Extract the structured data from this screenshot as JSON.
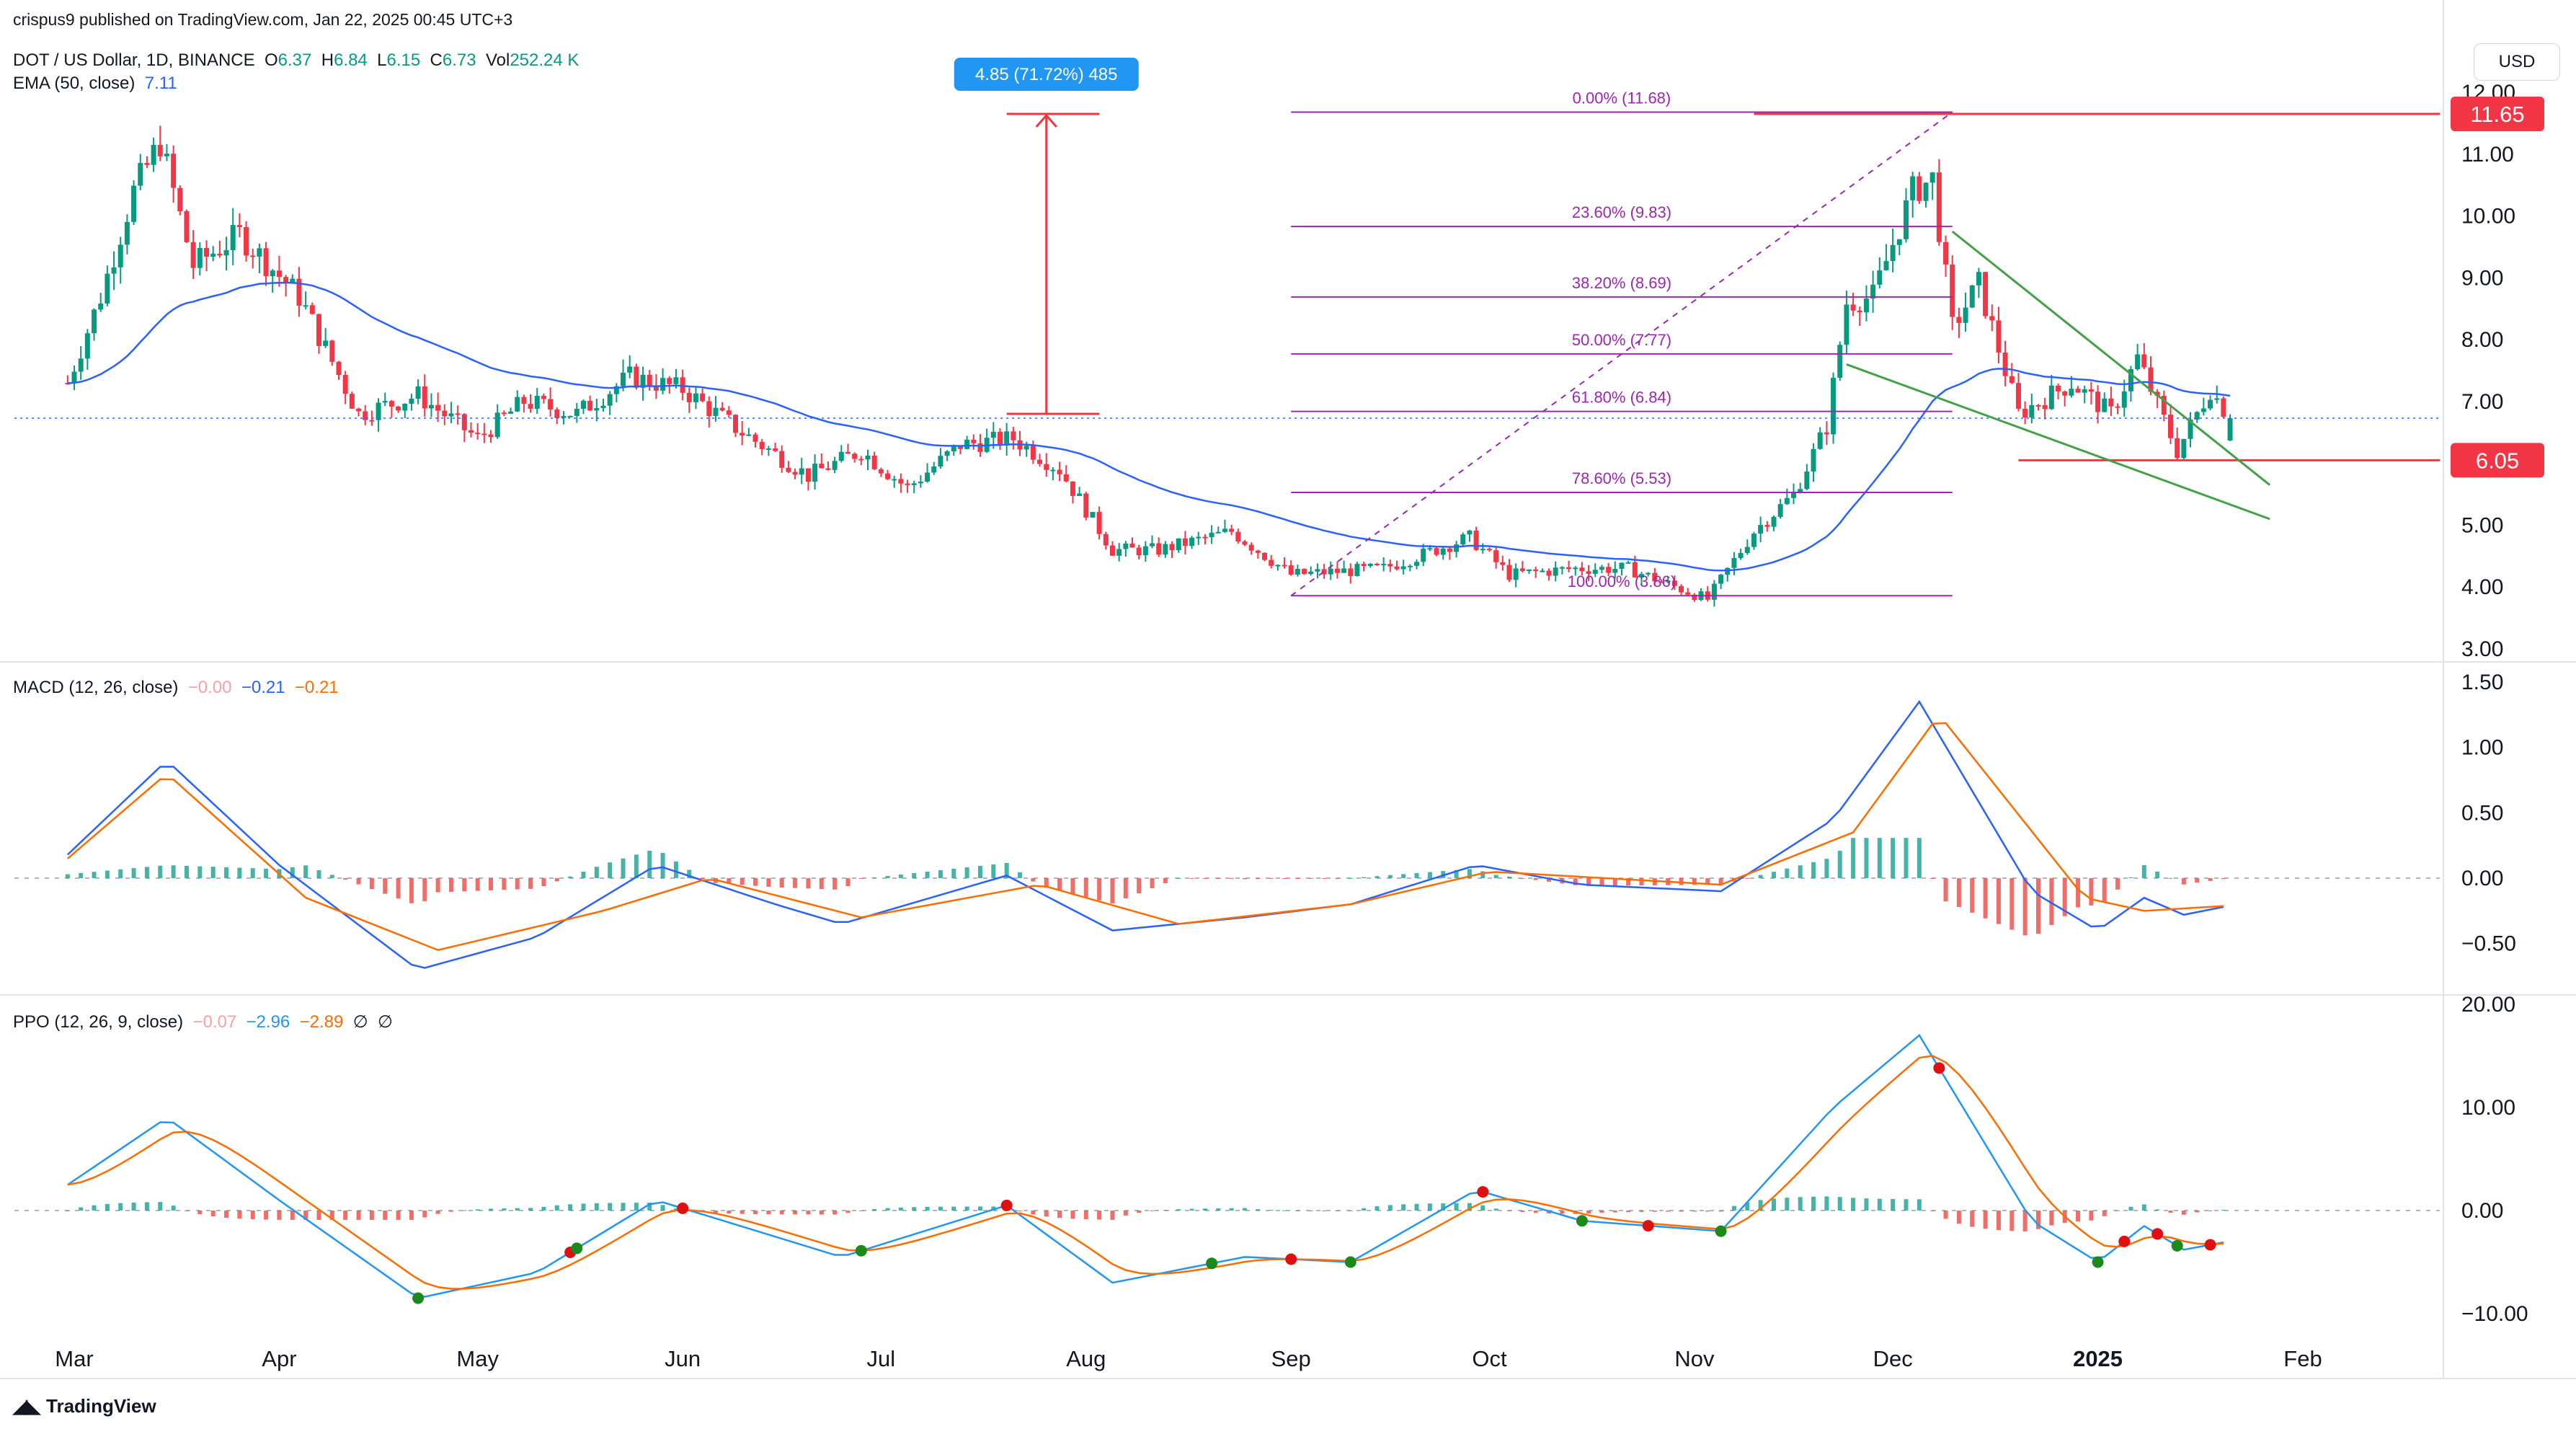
{
  "header": {
    "published": "crispus9 published on TradingView.com, Jan 22, 2025 00:45 UTC+3",
    "symbol": "DOT / US Dollar, 1D, BINANCE",
    "o_label": "O",
    "o": "6.37",
    "h_label": "H",
    "h": "6.84",
    "l_label": "L",
    "l": "6.15",
    "c_label": "C",
    "c": "6.73",
    "vol_label": "Vol",
    "vol": "252.24 K",
    "ema_label": "EMA (50, close)",
    "ema_value": "7.11",
    "currency_button": "USD"
  },
  "macd_legend": {
    "label": "MACD (12, 26, close)",
    "hist": "−0.00",
    "macd": "−0.21",
    "signal": "−0.21"
  },
  "ppo_legend": {
    "label": "PPO (12, 26, 9, close)",
    "hist": "−0.07",
    "ppo": "−2.96",
    "signal": "−2.89",
    "extra1": "∅",
    "extra2": "∅"
  },
  "measure_label": "4.85 (71.72%) 485",
  "footer_brand": "TradingView",
  "colors": {
    "up": "#089981",
    "down": "#f23645",
    "ema": "#2962ff",
    "fib": "#9c27b0",
    "trend": "#43a047",
    "level": "#f23645",
    "macd": "#2962ff",
    "signal": "#ff6d00",
    "ppo": "#2196f3",
    "measure": "#2196f3"
  },
  "chart_data": [
    {
      "type": "candlestick",
      "title": "DOT / US Dollar, 1D, BINANCE",
      "x_ticks": [
        "Mar",
        "Apr",
        "May",
        "Jun",
        "Jul",
        "Aug",
        "Sep",
        "Oct",
        "Nov",
        "Dec",
        "2025",
        "Feb"
      ],
      "y_ticks": [
        "3.00",
        "4.00",
        "5.00",
        "6.00",
        "7.00",
        "8.00",
        "9.00",
        "10.00",
        "11.00",
        "12.00"
      ],
      "ylim": [
        2.8,
        12.3
      ],
      "price_labels": [
        "11.65",
        "6.05"
      ],
      "series": [
        {
          "name": "DOT",
          "approx_close_path": [
            [
              "2024-02-29",
              7.3
            ],
            [
              "2024-03-05",
              8.7
            ],
            [
              "2024-03-10",
              10.4
            ],
            [
              "2024-03-14",
              11.2
            ],
            [
              "2024-03-19",
              9.2
            ],
            [
              "2024-03-26",
              9.7
            ],
            [
              "2024-04-04",
              8.7
            ],
            [
              "2024-04-13",
              6.8
            ],
            [
              "2024-04-22",
              7.1
            ],
            [
              "2024-05-01",
              6.4
            ],
            [
              "2024-05-08",
              7.0
            ],
            [
              "2024-05-16",
              6.8
            ],
            [
              "2024-05-24",
              7.4
            ],
            [
              "2024-06-01",
              7.2
            ],
            [
              "2024-06-10",
              6.5
            ],
            [
              "2024-06-20",
              5.8
            ],
            [
              "2024-06-28",
              6.2
            ],
            [
              "2024-07-05",
              5.6
            ],
            [
              "2024-07-13",
              6.3
            ],
            [
              "2024-07-21",
              6.4
            ],
            [
              "2024-07-28",
              5.9
            ],
            [
              "2024-08-05",
              4.6
            ],
            [
              "2024-08-12",
              4.6
            ],
            [
              "2024-08-23",
              4.9
            ],
            [
              "2024-09-01",
              4.2
            ],
            [
              "2024-09-15",
              4.3
            ],
            [
              "2024-09-28",
              4.8
            ],
            [
              "2024-10-04",
              4.2
            ],
            [
              "2024-10-14",
              4.3
            ],
            [
              "2024-10-22",
              4.3
            ],
            [
              "2024-11-03",
              3.8
            ],
            [
              "2024-11-10",
              4.9
            ],
            [
              "2024-11-16",
              5.5
            ],
            [
              "2024-11-21",
              6.6
            ],
            [
              "2024-11-24",
              8.6
            ],
            [
              "2024-11-28",
              8.7
            ],
            [
              "2024-12-04",
              10.4
            ],
            [
              "2024-12-07",
              10.6
            ],
            [
              "2024-12-10",
              8.2
            ],
            [
              "2024-12-14",
              8.9
            ],
            [
              "2024-12-20",
              6.8
            ],
            [
              "2024-12-28",
              7.3
            ],
            [
              "2025-01-03",
              6.8
            ],
            [
              "2025-01-07",
              7.7
            ],
            [
              "2025-01-13",
              6.2
            ],
            [
              "2025-01-18",
              7.2
            ],
            [
              "2025-01-21",
              6.73
            ]
          ]
        },
        {
          "name": "EMA (50, close)",
          "last": 7.11
        }
      ],
      "fibonacci": [
        {
          "label": "0.00% (11.68)",
          "ratio": 0.0,
          "price": 11.68
        },
        {
          "label": "23.60% (9.83)",
          "ratio": 0.236,
          "price": 9.83
        },
        {
          "label": "38.20% (8.69)",
          "ratio": 0.382,
          "price": 8.69
        },
        {
          "label": "50.00% (7.77)",
          "ratio": 0.5,
          "price": 7.77
        },
        {
          "label": "61.80% (6.84)",
          "ratio": 0.618,
          "price": 6.84
        },
        {
          "label": "78.60% (5.53)",
          "ratio": 0.786,
          "price": 5.53
        },
        {
          "label": "100.00% (3.86)",
          "ratio": 1.0,
          "price": 3.86
        }
      ],
      "measure": {
        "from": 6.8,
        "to": 11.65,
        "label": "4.85 (71.72%) 485"
      }
    },
    {
      "type": "line",
      "title": "MACD (12, 26, close)",
      "y_ticks": [
        "−0.50",
        "0.00",
        "0.50",
        "1.00",
        "1.50"
      ],
      "ylim": [
        -0.92,
        1.57
      ],
      "series": [
        {
          "name": "MACD",
          "approx_path": [
            [
              "2024-02-29",
              0.18
            ],
            [
              "2024-03-15",
              0.9
            ],
            [
              "2024-04-01",
              0.1
            ],
            [
              "2024-04-22",
              -0.7
            ],
            [
              "2024-05-10",
              -0.45
            ],
            [
              "2024-05-28",
              0.1
            ],
            [
              "2024-06-15",
              -0.2
            ],
            [
              "2024-06-25",
              -0.35
            ],
            [
              "2024-07-20",
              0.02
            ],
            [
              "2024-08-05",
              -0.4
            ],
            [
              "2024-08-25",
              -0.3
            ],
            [
              "2024-09-10",
              -0.2
            ],
            [
              "2024-09-29",
              0.1
            ],
            [
              "2024-10-15",
              -0.05
            ],
            [
              "2024-11-05",
              -0.1
            ],
            [
              "2024-11-22",
              0.45
            ],
            [
              "2024-12-05",
              1.35
            ],
            [
              "2024-12-22",
              -0.1
            ],
            [
              "2025-01-01",
              -0.4
            ],
            [
              "2025-01-08",
              -0.15
            ],
            [
              "2025-01-14",
              -0.28
            ],
            [
              "2025-01-21",
              -0.21
            ]
          ]
        },
        {
          "name": "Signal",
          "approx_path": [
            [
              "2024-02-29",
              0.15
            ],
            [
              "2024-03-15",
              0.8
            ],
            [
              "2024-04-05",
              -0.15
            ],
            [
              "2024-04-25",
              -0.55
            ],
            [
              "2024-05-20",
              -0.25
            ],
            [
              "2024-06-05",
              0.0
            ],
            [
              "2024-06-28",
              -0.3
            ],
            [
              "2024-07-25",
              -0.05
            ],
            [
              "2024-08-15",
              -0.35
            ],
            [
              "2024-09-10",
              -0.2
            ],
            [
              "2024-10-01",
              0.05
            ],
            [
              "2024-11-05",
              -0.05
            ],
            [
              "2024-11-25",
              0.35
            ],
            [
              "2024-12-08",
              1.25
            ],
            [
              "2024-12-30",
              -0.15
            ],
            [
              "2025-01-08",
              -0.25
            ],
            [
              "2025-01-21",
              -0.21
            ]
          ]
        }
      ],
      "legend": [
        "−0.00",
        "−0.21",
        "−0.21"
      ]
    },
    {
      "type": "line",
      "title": "PPO (12, 26, 9, close)",
      "y_ticks": [
        "−10.00",
        "0.00",
        "10.00",
        "20.00"
      ],
      "ylim": [
        -12.0,
        20.6
      ],
      "series": [
        {
          "name": "PPO",
          "approx_path": [
            [
              "2024-02-29",
              2.5
            ],
            [
              "2024-03-15",
              9.0
            ],
            [
              "2024-04-01",
              1.0
            ],
            [
              "2024-04-22",
              -8.5
            ],
            [
              "2024-05-10",
              -6.0
            ],
            [
              "2024-05-28",
              1.0
            ],
            [
              "2024-06-25",
              -4.5
            ],
            [
              "2024-07-20",
              0.5
            ],
            [
              "2024-08-05",
              -7.0
            ],
            [
              "2024-08-25",
              -4.5
            ],
            [
              "2024-09-10",
              -5.0
            ],
            [
              "2024-09-29",
              2.0
            ],
            [
              "2024-10-15",
              -1.0
            ],
            [
              "2024-11-05",
              -2.0
            ],
            [
              "2024-11-22",
              10.0
            ],
            [
              "2024-12-05",
              17.0
            ],
            [
              "2024-12-22",
              -1.0
            ],
            [
              "2025-01-01",
              -5.0
            ],
            [
              "2025-01-08",
              -1.5
            ],
            [
              "2025-01-14",
              -3.8
            ],
            [
              "2025-01-21",
              -2.96
            ]
          ]
        },
        {
          "name": "Signal",
          "last": -2.89
        }
      ],
      "legend": [
        "−0.07",
        "−2.96",
        "−2.89"
      ]
    }
  ]
}
